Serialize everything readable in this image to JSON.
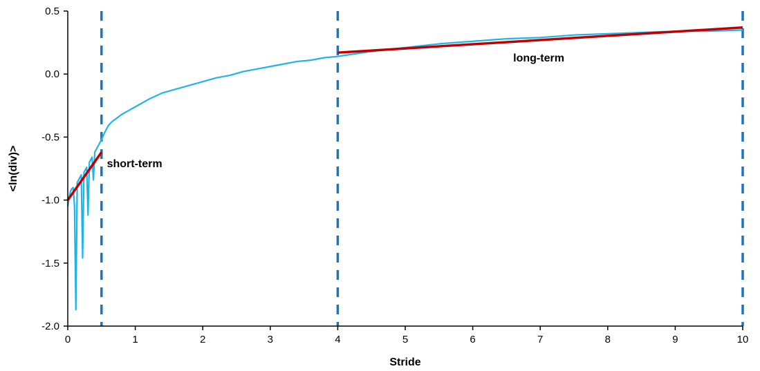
{
  "colors": {
    "data_line": "#1EB4E8",
    "fit_line": "#C00000",
    "vlines": "#1B75BC",
    "axis": "#000000"
  },
  "chart_data": {
    "type": "line",
    "title": "",
    "xlabel": "Stride",
    "ylabel": "<ln(div)>",
    "xlim": [
      0,
      10
    ],
    "ylim": [
      -2.0,
      0.5
    ],
    "x_ticks": [
      0,
      1,
      2,
      3,
      4,
      5,
      6,
      7,
      8,
      9,
      10
    ],
    "x_tick_labels": [
      "0",
      "1",
      "2",
      "3",
      "4",
      "5",
      "6",
      "7",
      "8",
      "9",
      "10"
    ],
    "y_ticks": [
      -2.0,
      -1.5,
      -1.0,
      -0.5,
      0.0,
      0.5
    ],
    "y_tick_labels": [
      "-2.0",
      "-1.5",
      "-1.0",
      "-0.5",
      "0.0",
      "0.5"
    ],
    "grid": false,
    "series": [
      {
        "x": [
          0.0,
          0.02,
          0.04,
          0.06,
          0.08,
          0.1,
          0.12,
          0.14,
          0.16,
          0.18,
          0.2,
          0.22,
          0.24,
          0.26,
          0.28,
          0.3,
          0.32,
          0.34,
          0.36,
          0.38,
          0.4,
          0.42,
          0.44,
          0.46,
          0.48,
          0.5,
          0.55,
          0.6,
          0.65,
          0.7,
          0.8,
          0.9,
          1.0,
          1.2,
          1.4,
          1.6,
          1.8,
          2.0,
          2.2,
          2.4,
          2.6,
          2.8,
          3.0,
          3.2,
          3.4,
          3.6,
          3.8,
          4.0,
          4.5,
          5.0,
          5.5,
          6.0,
          6.5,
          7.0,
          7.5,
          8.0,
          8.5,
          9.0,
          9.5,
          10.0
        ],
        "y": [
          -1.05,
          -0.98,
          -0.93,
          -0.91,
          -0.9,
          -1.05,
          -1.87,
          -0.86,
          -0.84,
          -0.82,
          -0.8,
          -1.46,
          -0.78,
          -0.76,
          -0.74,
          -1.12,
          -0.7,
          -0.68,
          -0.66,
          -0.84,
          -0.62,
          -0.6,
          -0.58,
          -0.56,
          -0.54,
          -0.52,
          -0.46,
          -0.41,
          -0.38,
          -0.36,
          -0.32,
          -0.29,
          -0.26,
          -0.2,
          -0.15,
          -0.12,
          -0.09,
          -0.06,
          -0.03,
          -0.01,
          0.02,
          0.04,
          0.06,
          0.08,
          0.1,
          0.11,
          0.13,
          0.14,
          0.18,
          0.21,
          0.24,
          0.26,
          0.28,
          0.29,
          0.31,
          0.32,
          0.33,
          0.34,
          0.34,
          0.35
        ]
      },
      {
        "x": [
          0.0,
          0.5
        ],
        "y": [
          -1.0,
          -0.62
        ]
      },
      {
        "x": [
          4.0,
          10.0
        ],
        "y": [
          0.17,
          0.37
        ]
      }
    ],
    "vertical_lines": [
      0.5,
      4.0,
      10.0
    ],
    "annotations": [
      {
        "text": "short-term",
        "x": 0.58,
        "y": -0.74
      },
      {
        "text": "long-term",
        "x": 6.6,
        "y": 0.1
      }
    ]
  }
}
